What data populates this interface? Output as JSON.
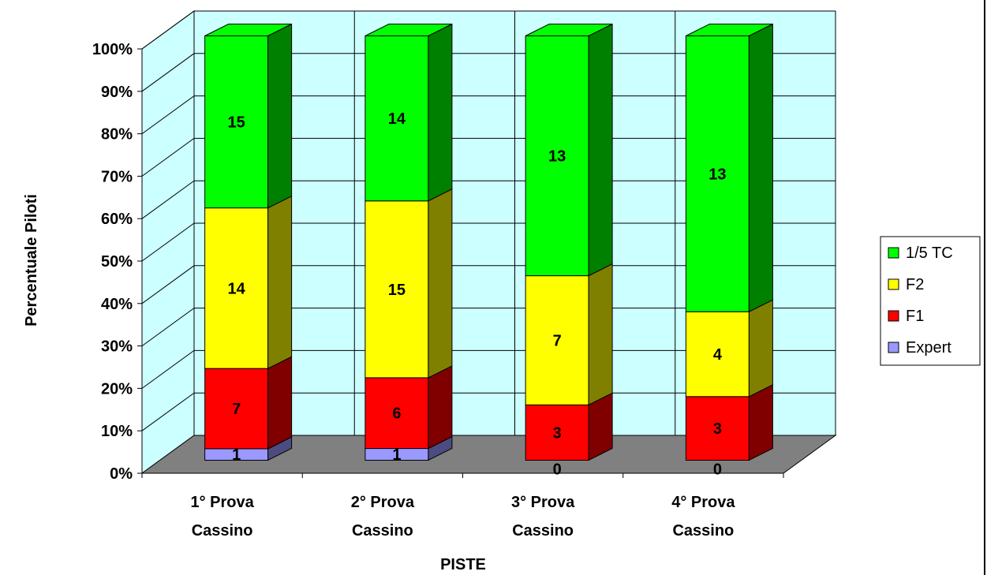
{
  "chart_data": {
    "type": "bar",
    "stacked": "percent",
    "three_d": true,
    "title": "",
    "xlabel": "PISTE",
    "ylabel": "Percentuale Piloti",
    "ylim": [
      0,
      100
    ],
    "y_ticks": [
      "0%",
      "10%",
      "20%",
      "30%",
      "40%",
      "50%",
      "60%",
      "70%",
      "80%",
      "90%",
      "100%"
    ],
    "categories": [
      [
        "1° Prova",
        "Cassino"
      ],
      [
        "2° Prova",
        "Cassino"
      ],
      [
        "3° Prova",
        "Cassino"
      ],
      [
        "4° Prova",
        "Cassino"
      ]
    ],
    "series": [
      {
        "name": "Expert",
        "values": [
          1,
          1,
          0,
          0
        ],
        "color": "#9999ff",
        "side": "#4c4c80"
      },
      {
        "name": "F1",
        "values": [
          7,
          6,
          3,
          3
        ],
        "color": "#ff0000",
        "side": "#800000"
      },
      {
        "name": "F2",
        "values": [
          14,
          15,
          7,
          4
        ],
        "color": "#ffff00",
        "side": "#808000"
      },
      {
        "name": "1/5 TC",
        "values": [
          15,
          14,
          13,
          13
        ],
        "color": "#00ff00",
        "side": "#008000"
      }
    ],
    "legend_order": [
      "1/5 TC",
      "F2",
      "F1",
      "Expert"
    ],
    "grid": true,
    "legend_position": "right",
    "wall_color": "#ccffff",
    "floor_color": "#808080"
  }
}
